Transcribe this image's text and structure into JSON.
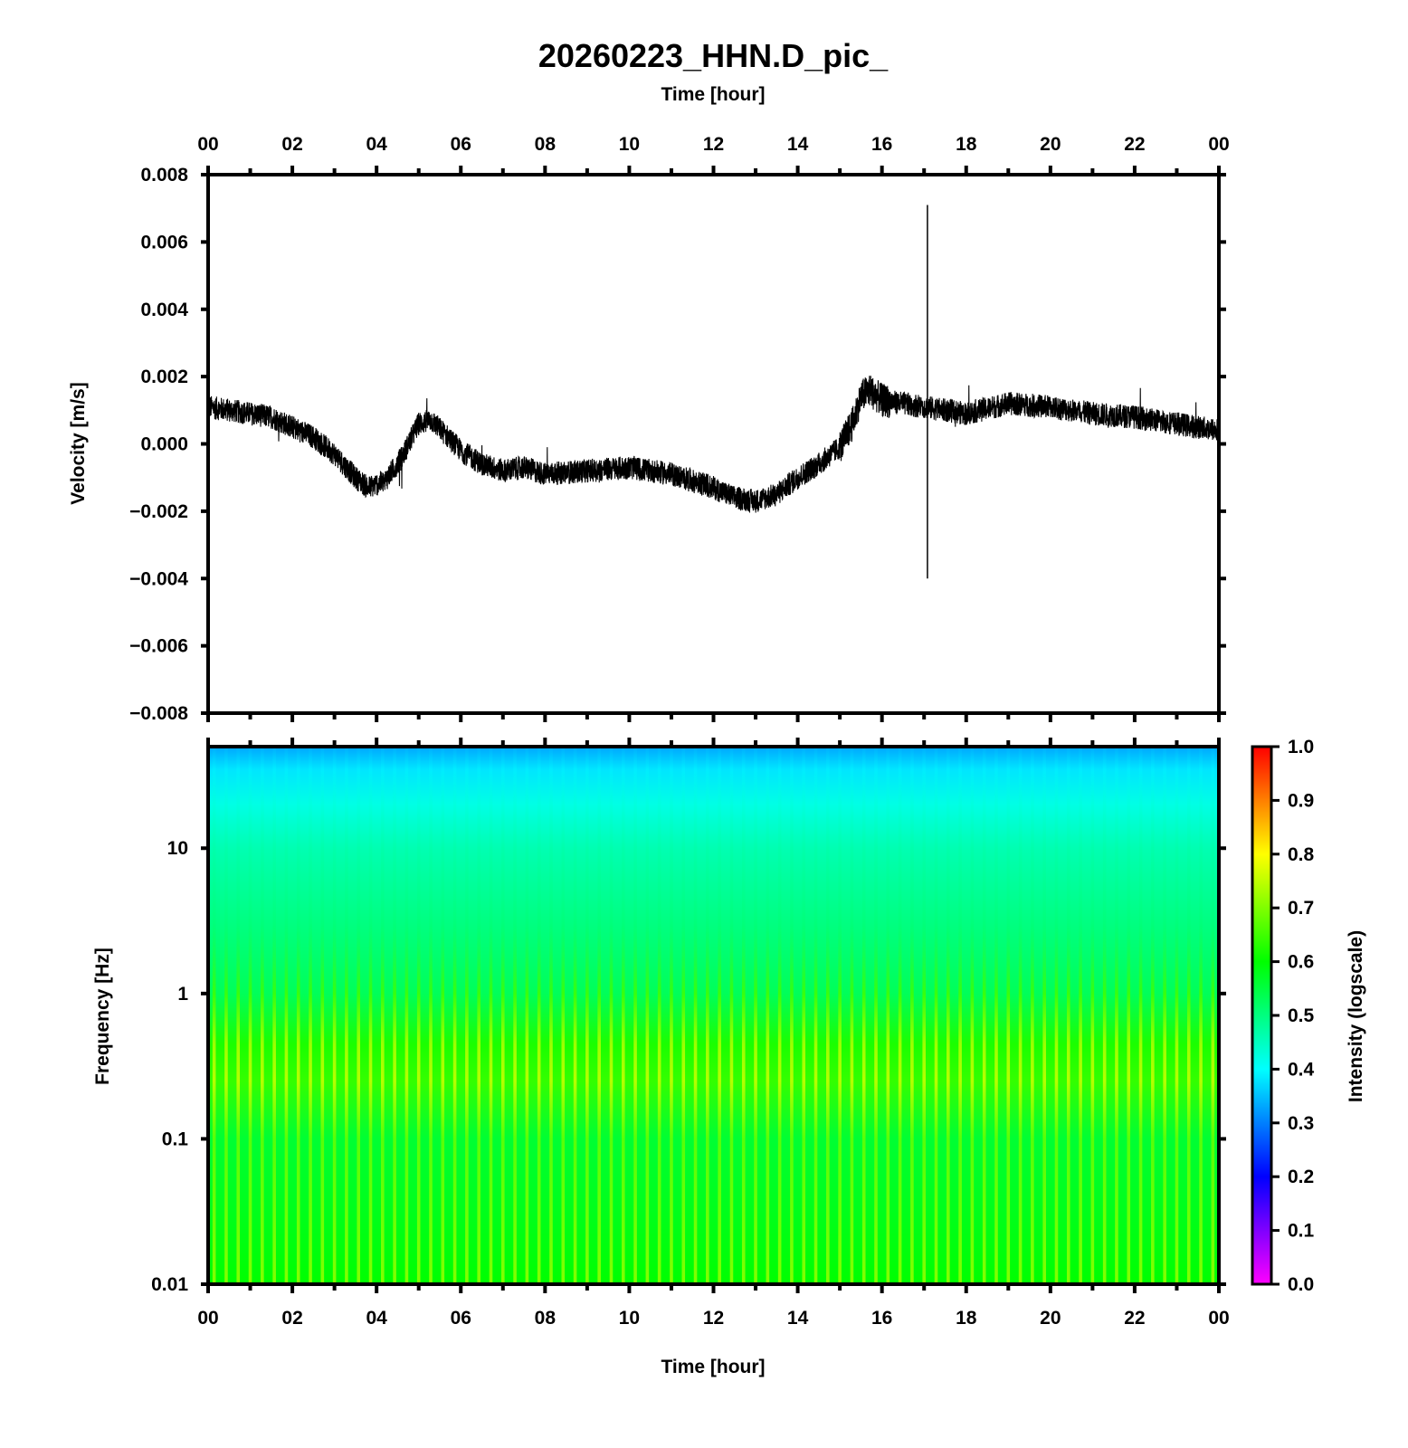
{
  "chart_data": [
    {
      "type": "line",
      "title": "20260223_HHN.D_pic_",
      "xlabel_top": "Time [hour]",
      "ylabel": "Velocity [m/s]",
      "xlim": [
        0,
        24
      ],
      "ylim": [
        -0.008,
        0.008
      ],
      "x_ticks": [
        "00",
        "02",
        "04",
        "06",
        "08",
        "10",
        "12",
        "14",
        "16",
        "18",
        "20",
        "22",
        "00"
      ],
      "x_tick_values": [
        0,
        2,
        4,
        6,
        8,
        10,
        12,
        14,
        16,
        18,
        20,
        22,
        24
      ],
      "y_ticks": [
        "0.008",
        "0.006",
        "0.004",
        "0.002",
        "0.000",
        "−0.002",
        "−0.004",
        "−0.006",
        "−0.008"
      ],
      "y_tick_values": [
        0.008,
        0.006,
        0.004,
        0.002,
        0.0,
        -0.002,
        -0.004,
        -0.006,
        -0.008
      ],
      "series": [
        {
          "color": "#000000",
          "x": [
            0,
            0.5,
            1,
            1.5,
            2,
            2.5,
            3,
            3.5,
            3.8,
            4.2,
            4.6,
            5,
            5.3,
            5.7,
            6,
            6.5,
            7,
            7.5,
            8,
            9,
            10,
            11,
            11.5,
            12,
            12.5,
            13,
            13.5,
            14,
            14.5,
            15,
            15.3,
            15.5,
            15.7,
            16,
            17,
            18,
            19,
            20,
            21,
            22,
            23,
            24
          ],
          "y": [
            0.0011,
            0.001,
            0.0009,
            0.0008,
            0.0005,
            0.0002,
            -0.0003,
            -0.001,
            -0.0013,
            -0.0011,
            -0.0004,
            0.0006,
            0.0007,
            0.0002,
            -0.0002,
            -0.0006,
            -0.0008,
            -0.0007,
            -0.0009,
            -0.0008,
            -0.0007,
            -0.0009,
            -0.0011,
            -0.0013,
            -0.0016,
            -0.0017,
            -0.0015,
            -0.001,
            -0.0006,
            -0.0001,
            0.0006,
            0.0014,
            0.0016,
            0.0013,
            0.0011,
            0.0009,
            0.0012,
            0.0011,
            0.0009,
            0.0008,
            0.0006,
            0.0004
          ]
        }
      ],
      "spikes": [
        {
          "x": 17.08,
          "ymin": -0.004,
          "ymax": 0.0071
        }
      ],
      "grid": false
    },
    {
      "type": "heatmap",
      "xlabel": "Time [hour]",
      "ylabel": "Frequency [Hz]",
      "xlim": [
        0,
        24
      ],
      "ylim": [
        0.01,
        50
      ],
      "yscale": "log",
      "x_ticks": [
        "00",
        "02",
        "04",
        "06",
        "08",
        "10",
        "12",
        "14",
        "16",
        "18",
        "20",
        "22",
        "00"
      ],
      "x_tick_values": [
        0,
        2,
        4,
        6,
        8,
        10,
        12,
        14,
        16,
        18,
        20,
        22,
        24
      ],
      "y_ticks": [
        "10",
        "1",
        "0.1",
        "0.01"
      ],
      "y_tick_values": [
        10,
        1,
        0.1,
        0.01
      ],
      "colorbar": {
        "label": "Intensity (logscale)",
        "range": [
          0.0,
          1.0
        ],
        "ticks": [
          "1.0",
          "0.9",
          "0.8",
          "0.7",
          "0.6",
          "0.5",
          "0.4",
          "0.3",
          "0.2",
          "0.1",
          "0.0"
        ],
        "tick_values": [
          1.0,
          0.9,
          0.8,
          0.7,
          0.6,
          0.5,
          0.4,
          0.3,
          0.2,
          0.1,
          0.0
        ],
        "colors": [
          "#ff00ff",
          "#0000ff",
          "#00ffff",
          "#00ff00",
          "#ffff00",
          "#ff0000"
        ]
      },
      "intensity_profile": {
        "frequency_hz": [
          0.01,
          0.03,
          0.1,
          0.25,
          0.45,
          1,
          3,
          10,
          20,
          35,
          50
        ],
        "intensity": [
          0.6,
          0.58,
          0.56,
          0.64,
          0.62,
          0.53,
          0.5,
          0.46,
          0.42,
          0.38,
          0.33
        ]
      },
      "stripe_count": 84
    }
  ]
}
